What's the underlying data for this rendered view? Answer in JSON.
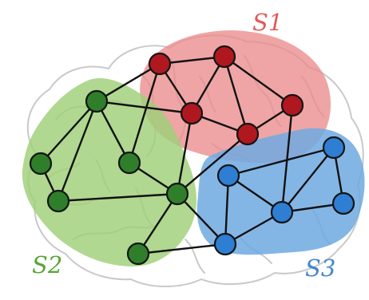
{
  "diagram": {
    "colors": {
      "s1_node": "#b01820",
      "s1_region": "#eb8c8c",
      "s2_node": "#2f7f2a",
      "s2_region": "#9fcf78",
      "s3_node": "#2e7fd3",
      "s3_region": "#6fa9e0",
      "edge": "#111111"
    },
    "labels": {
      "s1": "S1",
      "s2": "S2",
      "s3": "S3"
    }
  }
}
